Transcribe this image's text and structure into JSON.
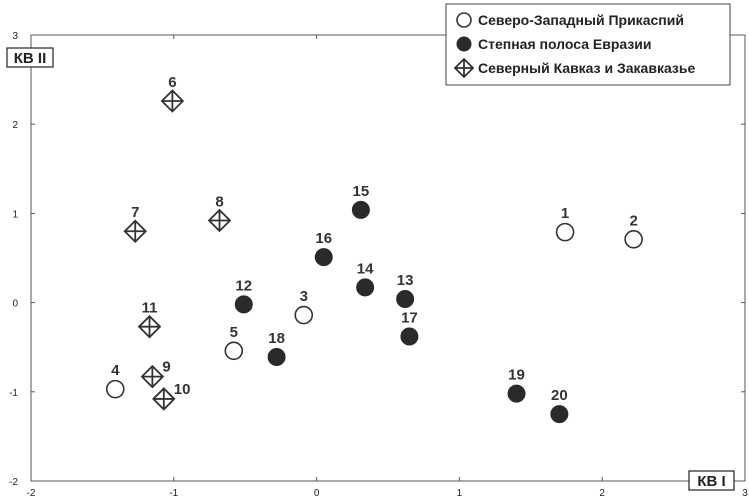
{
  "chart_data": {
    "type": "scatter",
    "xlabel": "КВ I",
    "ylabel": "КВ II",
    "xlim": [
      -2,
      3
    ],
    "ylim": [
      -2,
      3
    ],
    "x_ticks": [
      "-2",
      "-1",
      "0",
      "1",
      "2",
      "3"
    ],
    "y_ticks": [
      "-2",
      "-1",
      "0",
      "1",
      "2",
      "3"
    ],
    "grid": false,
    "legend_position": "top-right",
    "series": [
      {
        "name": "Северо-Западный Прикаспий",
        "marker": "open-circle",
        "points": [
          {
            "label": "1",
            "x": 1.74,
            "y": 0.79
          },
          {
            "label": "2",
            "x": 2.22,
            "y": 0.71
          },
          {
            "label": "3",
            "x": -0.09,
            "y": -0.14
          },
          {
            "label": "4",
            "x": -1.41,
            "y": -0.97
          },
          {
            "label": "5",
            "x": -0.58,
            "y": -0.54
          }
        ]
      },
      {
        "name": "Степная полоса Евразии",
        "marker": "filled-circle",
        "points": [
          {
            "label": "12",
            "x": -0.51,
            "y": -0.02
          },
          {
            "label": "13",
            "x": 0.62,
            "y": 0.04
          },
          {
            "label": "14",
            "x": 0.34,
            "y": 0.17
          },
          {
            "label": "15",
            "x": 0.31,
            "y": 1.04
          },
          {
            "label": "16",
            "x": 0.05,
            "y": 0.51
          },
          {
            "label": "17",
            "x": 0.65,
            "y": -0.38
          },
          {
            "label": "18",
            "x": -0.28,
            "y": -0.61
          },
          {
            "label": "19",
            "x": 1.4,
            "y": -1.02
          },
          {
            "label": "20",
            "x": 1.7,
            "y": -1.25
          }
        ]
      },
      {
        "name": "Северный Кавказ и Закавказье",
        "marker": "crossed-diamond",
        "points": [
          {
            "label": "6",
            "x": -1.01,
            "y": 2.26
          },
          {
            "label": "7",
            "x": -1.27,
            "y": 0.8
          },
          {
            "label": "8",
            "x": -0.68,
            "y": 0.92
          },
          {
            "label": "9",
            "x": -1.15,
            "y": -0.83
          },
          {
            "label": "10",
            "x": -1.07,
            "y": -1.08
          },
          {
            "label": "11",
            "x": -1.17,
            "y": -0.27
          }
        ]
      }
    ]
  }
}
